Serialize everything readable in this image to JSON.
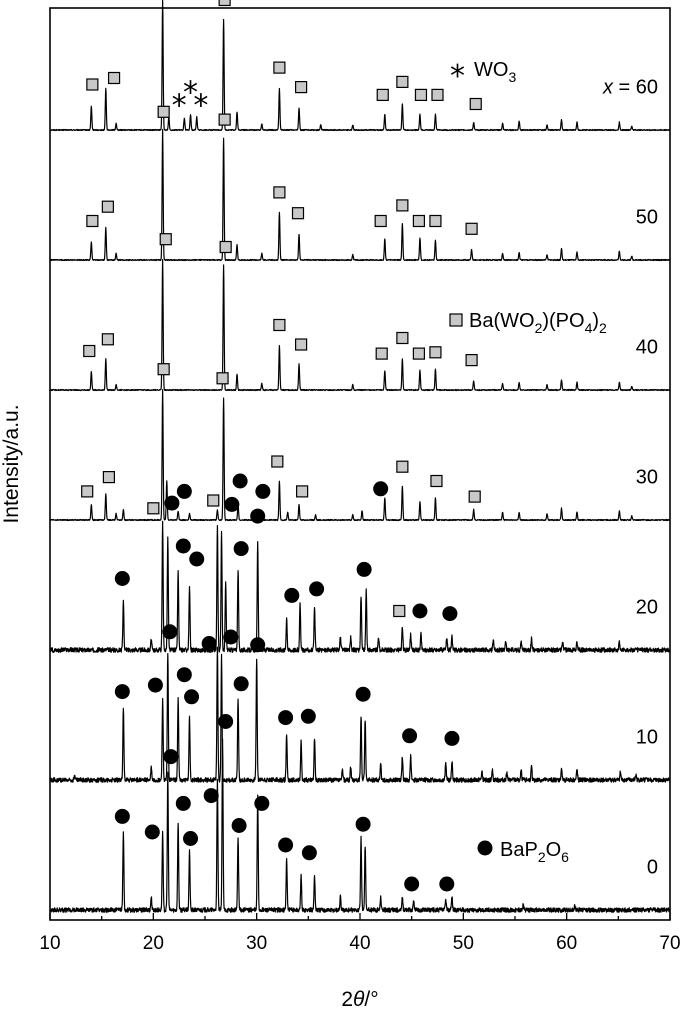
{
  "chart_data": {
    "type": "line",
    "xlabel_prefix": "2",
    "xlabel_var": "θ",
    "xlabel_unit": "/°",
    "ylabel": "Intensity/a.u.",
    "xlim": [
      10,
      70
    ],
    "x_ticks": [
      10,
      20,
      30,
      40,
      50,
      60,
      70
    ],
    "legend": {
      "wo3": {
        "symbol": "star",
        "text": "WO",
        "sub": "3"
      },
      "bwp": {
        "symbol": "square",
        "t1": "Ba(WO",
        "s1": "2",
        "t2": ")(PO",
        "s2": "4",
        "t3": ")",
        "s3": "2"
      },
      "bpo": {
        "symbol": "circle",
        "t1": "BaP",
        "s1": "2",
        "t2": "O",
        "s2": "6"
      }
    },
    "series": [
      {
        "name": "x = 60",
        "label_prefix": "x",
        "label_value": " = 60",
        "offset": 5.0,
        "peaks": [
          [
            14.0,
            0.18
          ],
          [
            15.4,
            0.32
          ],
          [
            16.4,
            0.05
          ],
          [
            20.9,
            1.0
          ],
          [
            21.5,
            0.1
          ],
          [
            23.0,
            0.09
          ],
          [
            23.6,
            0.12
          ],
          [
            24.2,
            0.1
          ],
          [
            26.8,
            0.85
          ],
          [
            28.1,
            0.14
          ],
          [
            30.5,
            0.05
          ],
          [
            32.2,
            0.32
          ],
          [
            34.1,
            0.17
          ],
          [
            36.2,
            0.04
          ],
          [
            39.3,
            0.04
          ],
          [
            42.4,
            0.12
          ],
          [
            44.1,
            0.2
          ],
          [
            45.8,
            0.12
          ],
          [
            47.3,
            0.12
          ],
          [
            51.0,
            0.06
          ],
          [
            53.8,
            0.05
          ],
          [
            55.4,
            0.07
          ],
          [
            58.1,
            0.04
          ],
          [
            59.5,
            0.08
          ],
          [
            61.0,
            0.06
          ],
          [
            65.1,
            0.06
          ],
          [
            66.3,
            0.03
          ]
        ],
        "markers": {
          "square": [
            [
              14.1,
              0.35
            ],
            [
              16.2,
              0.4
            ],
            [
              20.9,
              1.15
            ],
            [
              26.9,
              1.0
            ],
            [
              32.2,
              0.48
            ],
            [
              34.3,
              0.33
            ],
            [
              42.2,
              0.27
            ],
            [
              44.1,
              0.37
            ],
            [
              45.9,
              0.27
            ],
            [
              47.5,
              0.27
            ],
            [
              51.2,
              0.2
            ]
          ],
          "star": [
            [
              22.5,
              0.22
            ],
            [
              23.6,
              0.32
            ],
            [
              24.6,
              0.22
            ]
          ]
        }
      },
      {
        "name": "50",
        "label_value": "50",
        "offset": 4.0,
        "peaks": [
          [
            14.0,
            0.14
          ],
          [
            15.4,
            0.25
          ],
          [
            16.4,
            0.05
          ],
          [
            20.9,
            1.0
          ],
          [
            26.8,
            0.94
          ],
          [
            28.1,
            0.12
          ],
          [
            30.5,
            0.05
          ],
          [
            32.2,
            0.37
          ],
          [
            34.1,
            0.2
          ],
          [
            39.3,
            0.04
          ],
          [
            42.4,
            0.16
          ],
          [
            44.1,
            0.28
          ],
          [
            45.8,
            0.17
          ],
          [
            47.3,
            0.15
          ],
          [
            50.8,
            0.08
          ],
          [
            53.8,
            0.05
          ],
          [
            55.4,
            0.06
          ],
          [
            58.1,
            0.04
          ],
          [
            59.5,
            0.09
          ],
          [
            61.0,
            0.06
          ],
          [
            65.1,
            0.07
          ],
          [
            66.3,
            0.03
          ]
        ],
        "markers": {
          "square": [
            [
              14.1,
              0.3
            ],
            [
              15.6,
              0.41
            ],
            [
              21.0,
              1.14
            ],
            [
              26.9,
              1.08
            ],
            [
              32.2,
              0.52
            ],
            [
              34.0,
              0.36
            ],
            [
              42.0,
              0.3
            ],
            [
              44.1,
              0.42
            ],
            [
              45.7,
              0.3
            ],
            [
              47.3,
              0.3
            ],
            [
              50.8,
              0.24
            ]
          ]
        }
      },
      {
        "name": "40",
        "label_value": "40",
        "offset": 3.0,
        "peaks": [
          [
            14.0,
            0.14
          ],
          [
            15.4,
            0.24
          ],
          [
            16.4,
            0.04
          ],
          [
            20.9,
            1.0
          ],
          [
            26.8,
            0.96
          ],
          [
            28.1,
            0.12
          ],
          [
            30.5,
            0.05
          ],
          [
            32.2,
            0.34
          ],
          [
            34.1,
            0.2
          ],
          [
            39.3,
            0.04
          ],
          [
            42.4,
            0.15
          ],
          [
            44.1,
            0.24
          ],
          [
            45.8,
            0.15
          ],
          [
            47.3,
            0.16
          ],
          [
            51.0,
            0.07
          ],
          [
            53.8,
            0.05
          ],
          [
            55.4,
            0.06
          ],
          [
            58.1,
            0.04
          ],
          [
            59.5,
            0.08
          ],
          [
            61.0,
            0.06
          ],
          [
            65.1,
            0.06
          ],
          [
            66.3,
            0.03
          ]
        ],
        "markers": {
          "square": [
            [
              13.8,
              0.3
            ],
            [
              15.6,
              0.39
            ],
            [
              21.2,
              1.16
            ],
            [
              27.0,
              1.1
            ],
            [
              32.2,
              0.5
            ],
            [
              34.3,
              0.35
            ],
            [
              42.1,
              0.28
            ],
            [
              44.1,
              0.4
            ],
            [
              45.7,
              0.28
            ],
            [
              47.3,
              0.29
            ],
            [
              50.8,
              0.23
            ]
          ]
        }
      },
      {
        "name": "30",
        "label_value": "30",
        "offset": 2.0,
        "peaks": [
          [
            14.0,
            0.12
          ],
          [
            15.4,
            0.2
          ],
          [
            16.4,
            0.05
          ],
          [
            17.1,
            0.08
          ],
          [
            20.9,
            1.0
          ],
          [
            21.3,
            0.3
          ],
          [
            22.4,
            0.07
          ],
          [
            23.5,
            0.05
          ],
          [
            26.2,
            0.08
          ],
          [
            26.8,
            0.94
          ],
          [
            28.2,
            0.12
          ],
          [
            30.0,
            0.08
          ],
          [
            32.2,
            0.3
          ],
          [
            33.0,
            0.06
          ],
          [
            34.1,
            0.12
          ],
          [
            35.7,
            0.04
          ],
          [
            39.3,
            0.04
          ],
          [
            40.2,
            0.07
          ],
          [
            42.4,
            0.17
          ],
          [
            44.1,
            0.26
          ],
          [
            45.8,
            0.14
          ],
          [
            47.3,
            0.17
          ],
          [
            51.0,
            0.08
          ],
          [
            53.8,
            0.06
          ],
          [
            55.4,
            0.06
          ],
          [
            58.1,
            0.05
          ],
          [
            59.5,
            0.09
          ],
          [
            61.0,
            0.06
          ],
          [
            65.1,
            0.07
          ],
          [
            66.3,
            0.03
          ]
        ],
        "markers": {
          "square": [
            [
              13.6,
              0.22
            ],
            [
              15.7,
              0.33
            ],
            [
              21.0,
              1.16
            ],
            [
              26.7,
              1.09
            ],
            [
              32.0,
              0.45
            ],
            [
              34.4,
              0.22
            ],
            [
              44.1,
              0.41
            ],
            [
              47.4,
              0.3
            ],
            [
              51.1,
              0.18
            ]
          ],
          "circle": [
            [
              23.0,
              0.22
            ],
            [
              28.4,
              0.3
            ],
            [
              30.6,
              0.22
            ],
            [
              42.0,
              0.24
            ]
          ]
        }
      },
      {
        "name": "20",
        "label_value": "20",
        "offset": 1.0,
        "peaks": [
          [
            17.1,
            0.38
          ],
          [
            19.8,
            0.08
          ],
          [
            20.9,
            0.98
          ],
          [
            21.4,
            0.86
          ],
          [
            22.4,
            0.6
          ],
          [
            23.5,
            0.48
          ],
          [
            26.2,
            0.96
          ],
          [
            26.6,
            0.9
          ],
          [
            27.0,
            0.52
          ],
          [
            28.2,
            0.62
          ],
          [
            30.1,
            0.82
          ],
          [
            32.9,
            0.25
          ],
          [
            34.2,
            0.35
          ],
          [
            35.6,
            0.32
          ],
          [
            38.1,
            0.1
          ],
          [
            39.1,
            0.1
          ],
          [
            40.1,
            0.42
          ],
          [
            40.6,
            0.46
          ],
          [
            41.8,
            0.1
          ],
          [
            44.1,
            0.18
          ],
          [
            44.9,
            0.12
          ],
          [
            45.9,
            0.12
          ],
          [
            48.4,
            0.1
          ],
          [
            48.9,
            0.1
          ],
          [
            52.9,
            0.08
          ],
          [
            54.1,
            0.07
          ],
          [
            55.6,
            0.07
          ],
          [
            56.6,
            0.09
          ],
          [
            59.6,
            0.07
          ],
          [
            61.0,
            0.06
          ],
          [
            65.1,
            0.06
          ]
        ],
        "markers": {
          "square": [
            [
              20.0,
              1.09
            ],
            [
              25.8,
              1.15
            ],
            [
              43.8,
              0.3
            ]
          ],
          "circle": [
            [
              17.0,
              0.55
            ],
            [
              21.8,
              1.13
            ],
            [
              22.9,
              0.8
            ],
            [
              24.2,
              0.7
            ],
            [
              27.6,
              1.12
            ],
            [
              28.5,
              0.78
            ],
            [
              30.1,
              1.03
            ],
            [
              33.4,
              0.42
            ],
            [
              35.8,
              0.47
            ],
            [
              40.4,
              0.62
            ],
            [
              45.8,
              0.3
            ],
            [
              48.7,
              0.28
            ]
          ]
        }
      },
      {
        "name": "10",
        "label_value": "10",
        "offset": 0.0,
        "peaks": [
          [
            12.4,
            0.04
          ],
          [
            17.1,
            0.55
          ],
          [
            19.8,
            0.1
          ],
          [
            20.9,
            0.62
          ],
          [
            21.4,
            0.98
          ],
          [
            22.4,
            0.63
          ],
          [
            23.5,
            0.48
          ],
          [
            26.2,
            1.02
          ],
          [
            26.6,
            0.95
          ],
          [
            28.2,
            0.63
          ],
          [
            30.0,
            0.94
          ],
          [
            32.9,
            0.35
          ],
          [
            34.3,
            0.3
          ],
          [
            35.6,
            0.33
          ],
          [
            38.3,
            0.08
          ],
          [
            39.1,
            0.1
          ],
          [
            40.1,
            0.5
          ],
          [
            40.5,
            0.47
          ],
          [
            42.0,
            0.14
          ],
          [
            44.1,
            0.18
          ],
          [
            44.9,
            0.18
          ],
          [
            48.3,
            0.13
          ],
          [
            48.9,
            0.15
          ],
          [
            51.8,
            0.06
          ],
          [
            52.8,
            0.08
          ],
          [
            54.2,
            0.06
          ],
          [
            55.6,
            0.07
          ],
          [
            56.6,
            0.1
          ],
          [
            59.5,
            0.09
          ],
          [
            61.0,
            0.08
          ],
          [
            65.2,
            0.06
          ],
          [
            66.7,
            0.04
          ]
        ],
        "markers": {
          "circle": [
            [
              17.0,
              0.68
            ],
            [
              20.2,
              0.73
            ],
            [
              21.6,
              1.14
            ],
            [
              23.0,
              0.81
            ],
            [
              23.7,
              0.64
            ],
            [
              25.4,
              1.05
            ],
            [
              27.5,
              1.1
            ],
            [
              28.5,
              0.74
            ],
            [
              30.1,
              1.04
            ],
            [
              32.8,
              0.48
            ],
            [
              35.0,
              0.49
            ],
            [
              40.3,
              0.66
            ],
            [
              44.8,
              0.34
            ],
            [
              48.9,
              0.32
            ]
          ]
        }
      },
      {
        "name": "0",
        "label_value": "0",
        "offset": -1.0,
        "peaks": [
          [
            17.1,
            0.6
          ],
          [
            19.8,
            0.1
          ],
          [
            20.9,
            0.6
          ],
          [
            21.4,
            1.05
          ],
          [
            22.4,
            0.67
          ],
          [
            23.5,
            0.45
          ],
          [
            26.2,
            1.0
          ],
          [
            26.7,
            1.3
          ],
          [
            28.2,
            0.56
          ],
          [
            30.1,
            0.87
          ],
          [
            32.9,
            0.4
          ],
          [
            34.3,
            0.26
          ],
          [
            35.6,
            0.27
          ],
          [
            38.1,
            0.1
          ],
          [
            40.1,
            0.55
          ],
          [
            40.5,
            0.5
          ],
          [
            42.0,
            0.1
          ],
          [
            44.1,
            0.09
          ],
          [
            45.2,
            0.07
          ],
          [
            48.3,
            0.08
          ],
          [
            48.9,
            0.1
          ],
          [
            55.8,
            0.04
          ],
          [
            60.8,
            0.04
          ]
        ],
        "markers": {
          "circle": [
            [
              17.0,
              0.72
            ],
            [
              19.9,
              0.6
            ],
            [
              21.7,
              1.18
            ],
            [
              22.9,
              0.82
            ],
            [
              23.6,
              0.55
            ],
            [
              25.6,
              0.88
            ],
            [
              27.0,
              1.45
            ],
            [
              28.3,
              0.65
            ],
            [
              30.5,
              0.82
            ],
            [
              32.8,
              0.5
            ],
            [
              35.1,
              0.44
            ],
            [
              40.3,
              0.66
            ],
            [
              45.0,
              0.2
            ],
            [
              48.4,
              0.2
            ]
          ]
        }
      }
    ]
  }
}
